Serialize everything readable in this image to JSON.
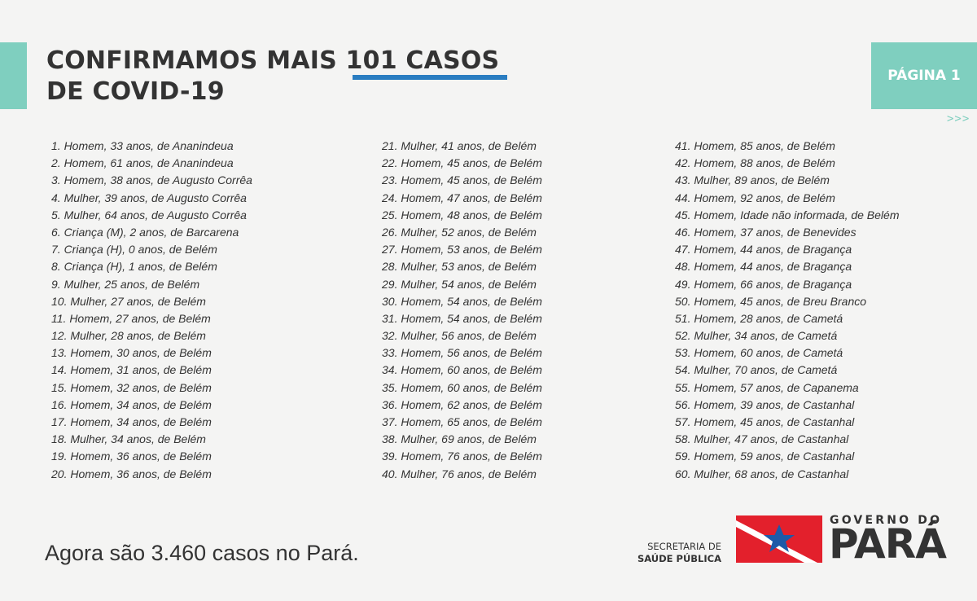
{
  "header": {
    "title_line1": "CONFIRMAMOS MAIS 101 CASOS",
    "title_line2": "DE COVID-19",
    "page_label": "PÁGINA 1",
    "next_arrows": ">>>"
  },
  "colors": {
    "accent_teal": "#7fcfbf",
    "accent_blue": "#2a7dc1",
    "flag_red": "#e3202c",
    "flag_blue": "#1e5aa8"
  },
  "cases": {
    "column1": [
      "1. Homem, 33 anos, de Ananindeua",
      "2. Homem, 61 anos, de Ananindeua",
      "3. Homem, 38 anos, de Augusto Corrêa",
      "4. Mulher, 39 anos, de Augusto Corrêa",
      "5. Mulher, 64 anos, de Augusto Corrêa",
      "6. Criança (M), 2 anos, de Barcarena",
      "7. Criança (H), 0 anos, de Belém",
      "8. Criança (H), 1 anos, de Belém",
      "9. Mulher, 25 anos, de Belém",
      "10. Mulher, 27 anos, de Belém",
      "11. Homem, 27 anos, de Belém",
      "12. Mulher, 28 anos, de Belém",
      "13. Homem, 30 anos, de Belém",
      "14. Homem, 31 anos, de Belém",
      "15. Homem, 32 anos, de Belém",
      "16. Homem, 34 anos, de Belém",
      "17. Homem, 34 anos, de Belém",
      "18. Mulher, 34 anos, de Belém",
      "19. Homem, 36 anos, de Belém",
      "20. Homem, 36 anos, de Belém"
    ],
    "column2": [
      "21. Mulher, 41 anos, de Belém",
      "22. Homem, 45 anos, de Belém",
      "23. Homem, 45 anos, de Belém",
      "24. Homem, 47 anos, de Belém",
      "25. Homem, 48 anos, de Belém",
      "26. Mulher, 52 anos, de Belém",
      "27. Homem, 53 anos, de Belém",
      "28. Mulher, 53 anos, de Belém",
      "29. Mulher, 54 anos, de Belém",
      "30. Homem, 54 anos, de Belém",
      "31. Homem, 54 anos, de Belém",
      "32. Mulher, 56 anos, de Belém",
      "33. Homem, 56 anos, de Belém",
      "34. Homem, 60 anos, de Belém",
      "35. Homem, 60 anos, de Belém",
      "36. Homem, 62 anos, de Belém",
      "37. Homem, 65 anos, de Belém",
      "38. Mulher, 69 anos, de Belém",
      "39. Homem, 76 anos, de Belém",
      "40. Mulher, 76 anos, de Belém"
    ],
    "column3": [
      "41. Homem, 85 anos, de Belém",
      "42. Homem, 88 anos, de Belém",
      "43. Mulher, 89 anos, de Belém",
      "44. Homem, 92 anos, de Belém",
      "45. Homem, Idade não informada, de Belém",
      "46. Homem, 37 anos, de Benevides",
      "47. Homem, 44 anos, de Bragança",
      "48. Homem, 44 anos, de Bragança",
      "49. Homem, 66 anos, de Bragança",
      "50. Homem, 45 anos, de Breu Branco",
      "51. Homem, 28 anos, de Cametá",
      "52. Mulher, 34 anos, de Cametá",
      "53. Homem, 60 anos, de Cametá",
      "54. Mulher, 70 anos, de Cametá",
      "55. Homem, 57 anos, de Capanema",
      "56. Homem, 39 anos, de Castanhal",
      "57. Homem, 45 anos, de Castanhal",
      "58. Mulher, 47 anos, de Castanhal",
      "59. Homem, 59 anos, de Castanhal",
      "60. Mulher, 68 anos, de Castanhal"
    ]
  },
  "footer": {
    "total_text": "Agora são 3.460 casos no Pará.",
    "secretaria_line1": "SECRETARIA DE",
    "secretaria_line2": "SAÚDE PÚBLICA",
    "gov_line1": "GOVERNO DO",
    "gov_line2": "PARÁ"
  }
}
